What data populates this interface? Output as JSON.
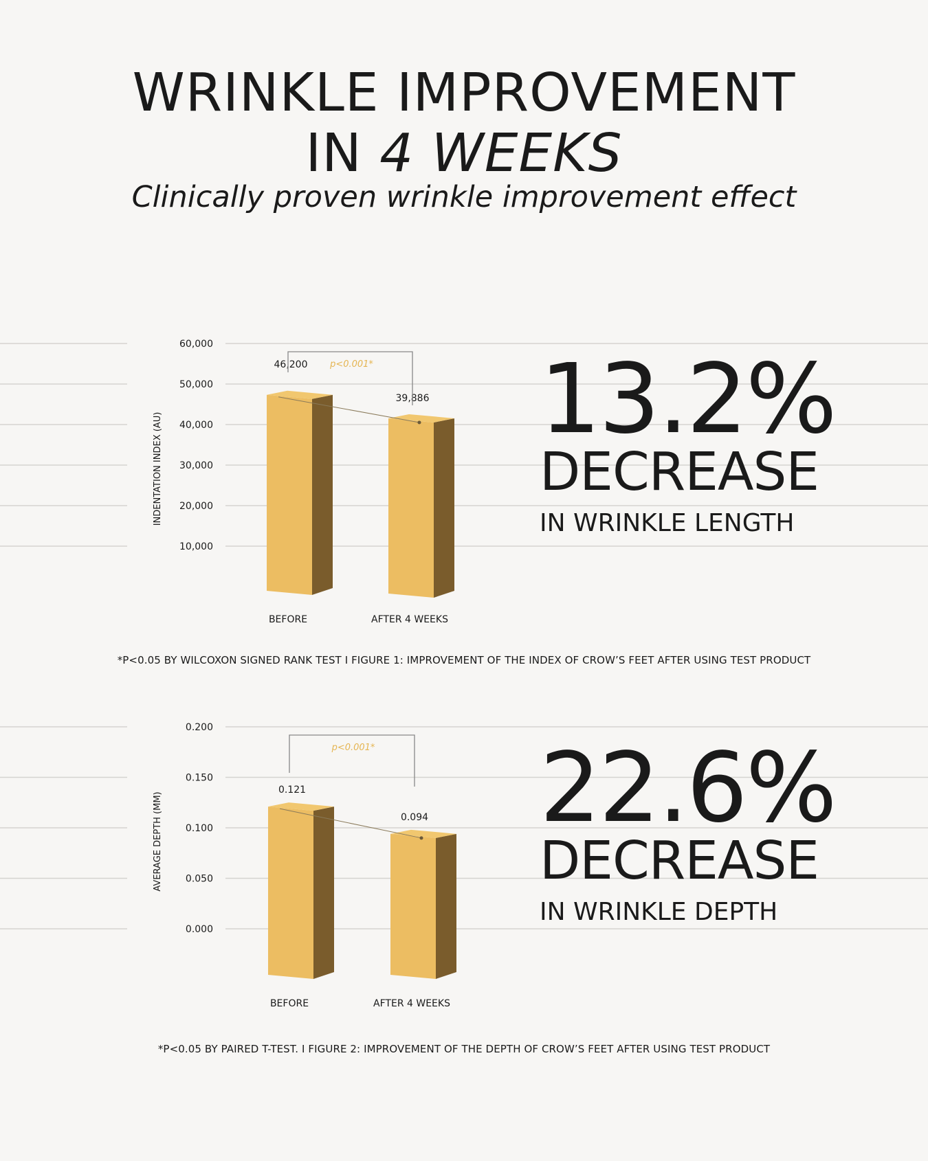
{
  "header": {
    "title_line1": "WRINKLE IMPROVEMENT",
    "title_line2_pre": "IN",
    "title_line2_em": "4 WEEKS",
    "subtitle": "Clinically proven wrinkle improvement effect"
  },
  "colors": {
    "background": "#f7f6f4",
    "bar_front": "#ecbd62",
    "bar_side": "#7a5c2c",
    "bar_top": "#f1c76f",
    "gridline": "#d5d3d0",
    "significance": "#e5b552",
    "text": "#1a1a1a"
  },
  "chart_data": [
    {
      "type": "bar",
      "ylabel": "INDENTATION INDEX (AU)",
      "ylim": [
        0,
        60000
      ],
      "yticks": [
        "60,000",
        "50,000",
        "40,000",
        "30,000",
        "20,000",
        "10,000"
      ],
      "categories": [
        "BEFORE",
        "AFTER 4 WEEKS"
      ],
      "values": [
        46200,
        39886
      ],
      "value_labels": [
        "46,200",
        "39,886"
      ],
      "significance": "p<0.001*",
      "caption": "*P<0.05 BY WILCOXON SIGNED RANK TEST  I  FIGURE 1: IMPROVEMENT OF THE INDEX OF CROW’S FEET AFTER USING TEST PRODUCT"
    },
    {
      "type": "bar",
      "ylabel": "AVERAGE DEPTH (MM)",
      "ylim": [
        0,
        0.2
      ],
      "yticks": [
        "0.200",
        "0.150",
        "0.100",
        "0.050",
        "0.000"
      ],
      "categories": [
        "BEFORE",
        "AFTER 4 WEEKS"
      ],
      "values": [
        0.121,
        0.094
      ],
      "value_labels": [
        "0.121",
        "0.094"
      ],
      "significance": "p<0.001*",
      "caption": "*P<0.05 BY PAIRED T-TEST.  I  FIGURE 2: IMPROVEMENT OF THE DEPTH OF CROW’S FEET AFTER USING TEST PRODUCT"
    }
  ],
  "stats": [
    {
      "percent": "13.2%",
      "label": "DECREASE",
      "detail": "IN WRINKLE LENGTH"
    },
    {
      "percent": "22.6%",
      "label": "DECREASE",
      "detail": "IN WRINKLE DEPTH"
    }
  ]
}
